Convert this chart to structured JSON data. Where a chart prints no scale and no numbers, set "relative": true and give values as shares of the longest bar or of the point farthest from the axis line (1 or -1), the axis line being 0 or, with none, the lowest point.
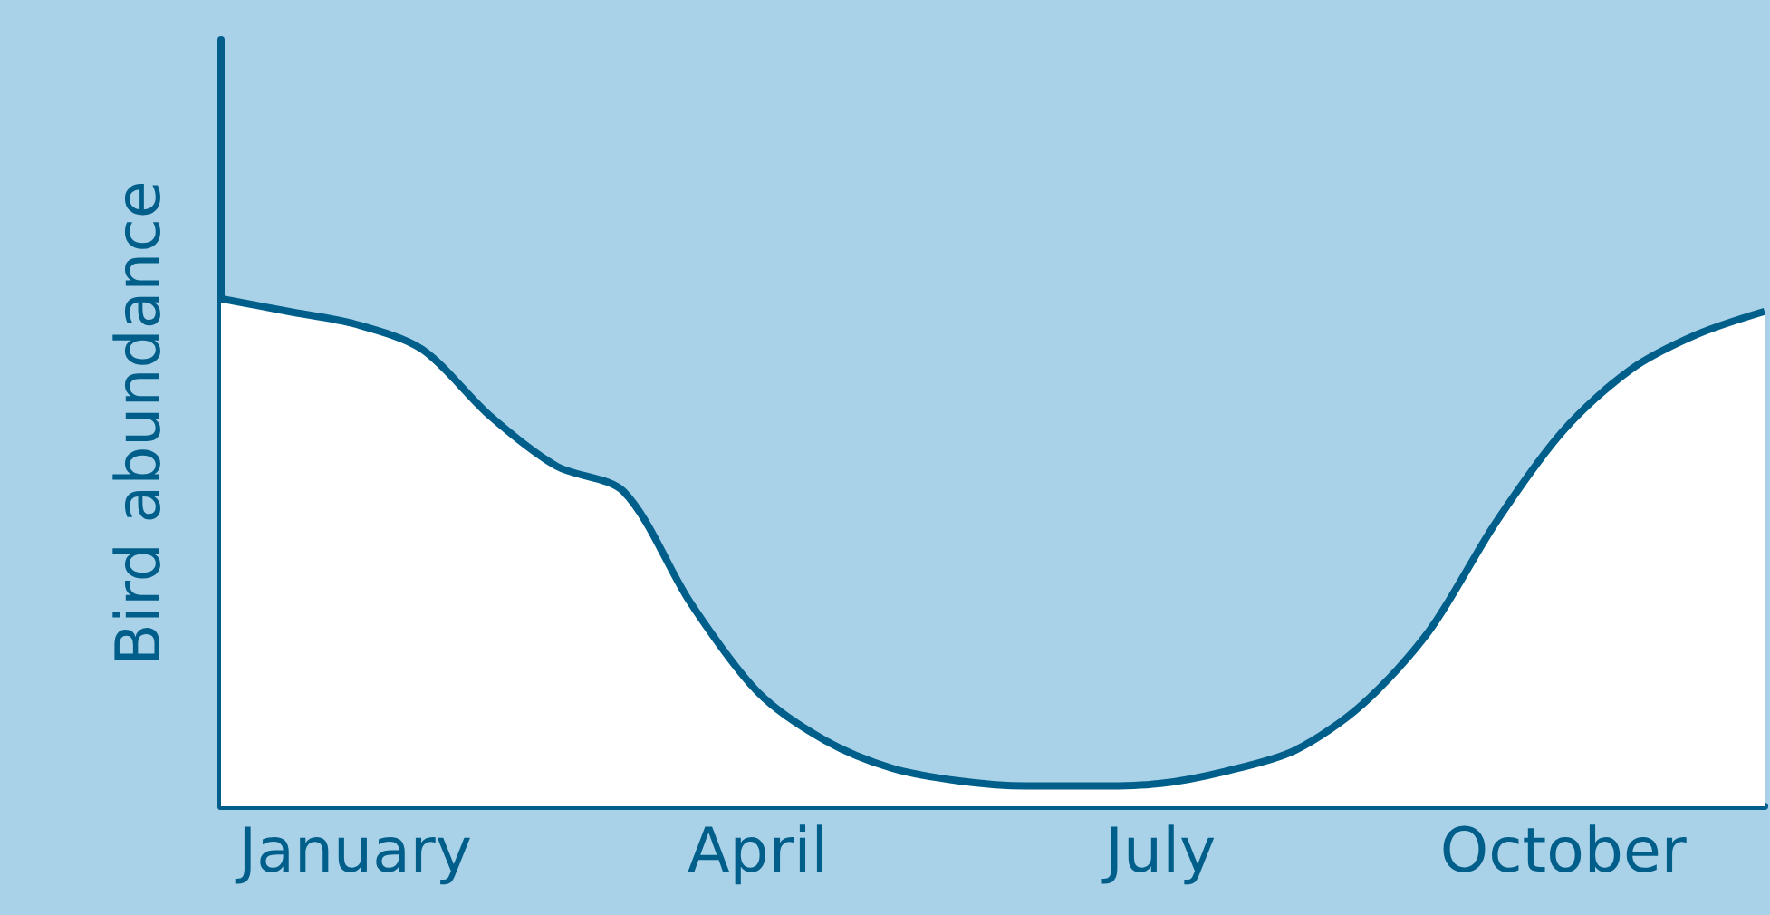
{
  "chart_data": {
    "type": "area",
    "ylabel": "Bird abundance",
    "relative": true,
    "categories": [
      null,
      null,
      "January",
      null,
      null,
      null,
      null,
      null,
      "April",
      null,
      null,
      null,
      null,
      null,
      "July",
      null,
      null,
      null,
      null,
      null,
      "October",
      null,
      null,
      null
    ],
    "values": [
      1.0,
      0.975,
      0.95,
      0.9,
      0.77,
      0.67,
      0.62,
      0.4,
      0.225,
      0.13,
      0.075,
      0.05,
      0.04,
      0.04,
      0.045,
      0.07,
      0.11,
      0.2,
      0.345,
      0.56,
      0.74,
      0.86,
      0.93,
      0.975
    ],
    "color": "#005f8a",
    "grid": false,
    "marker": "none",
    "line_style": "solid"
  }
}
